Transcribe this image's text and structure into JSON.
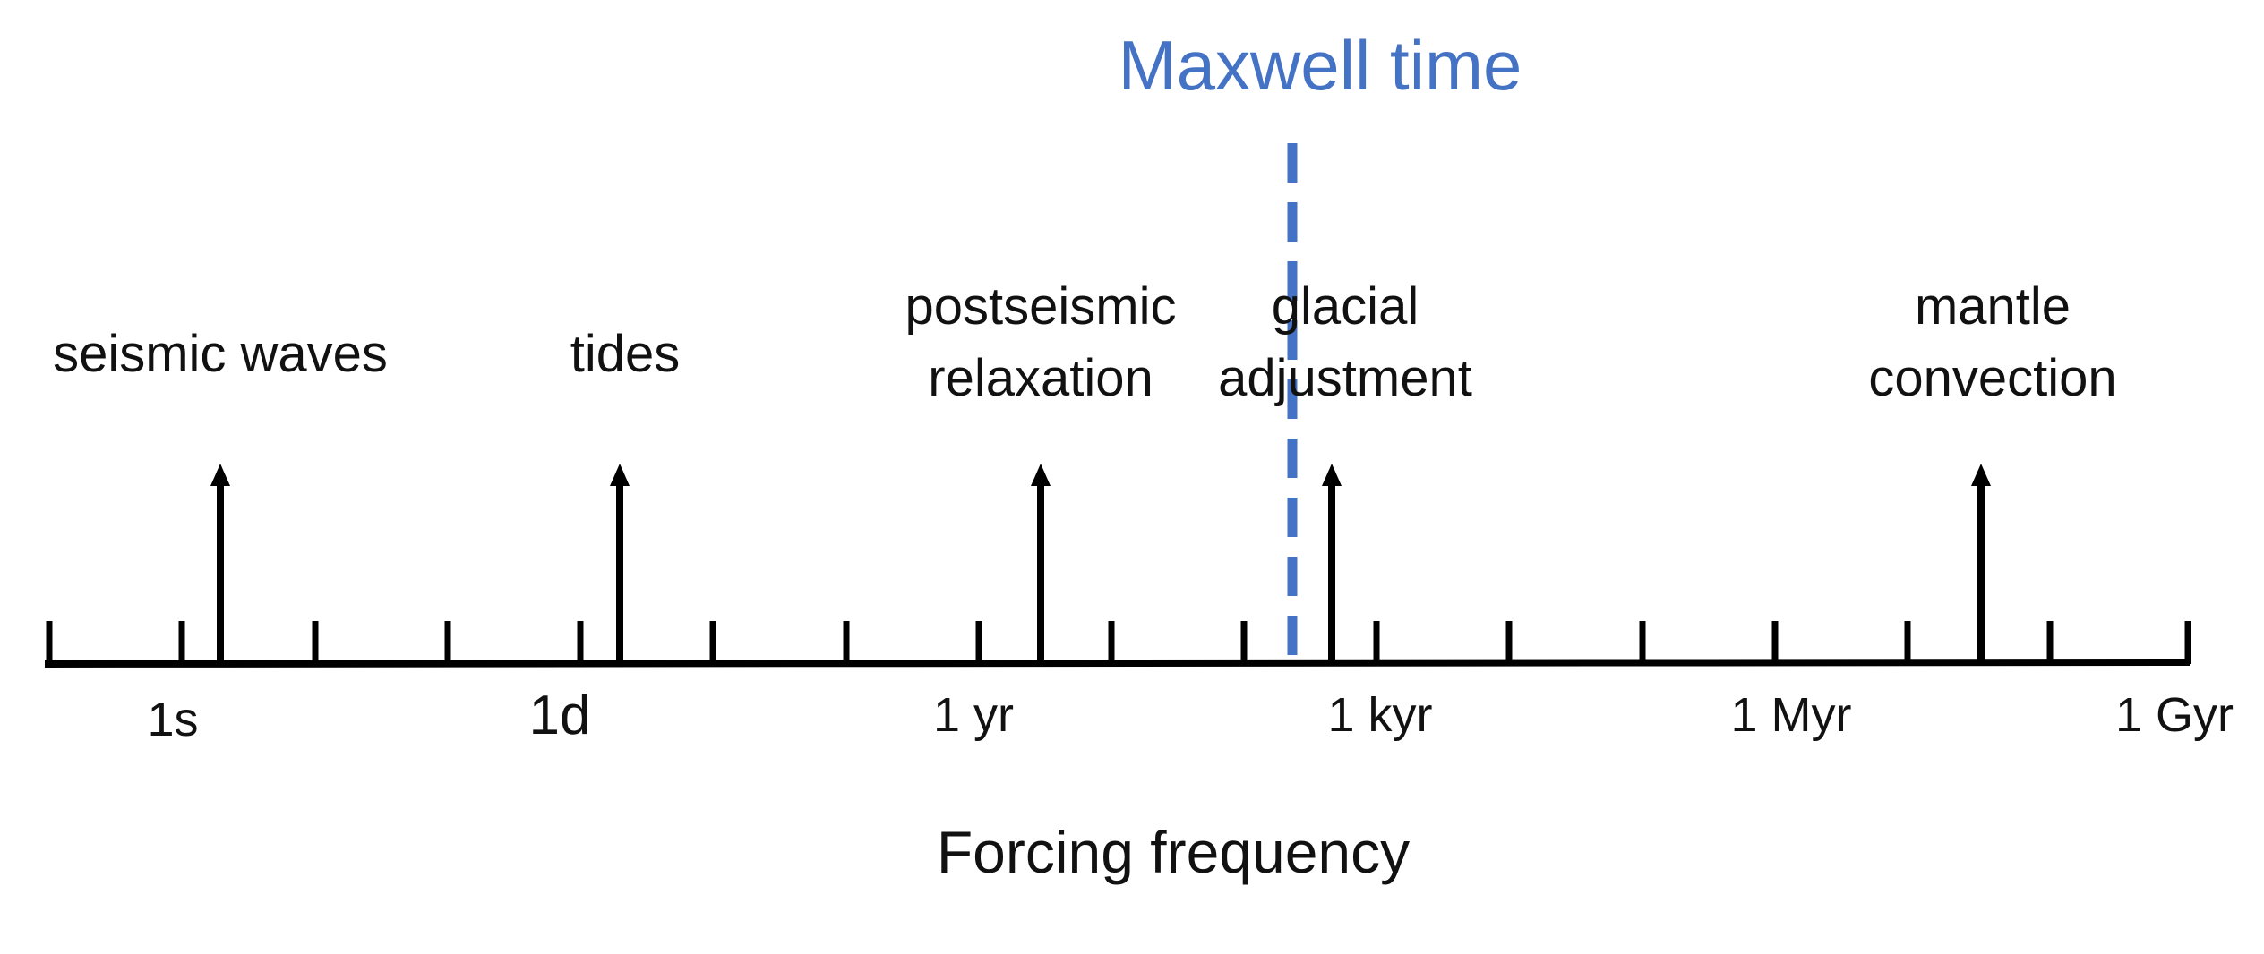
{
  "colors": {
    "axis": "#000000",
    "maxwell": "#4472C4",
    "text": "#111111"
  },
  "maxwell": {
    "label": "Maxwell time"
  },
  "axis": {
    "title": "Forcing frequency",
    "tick_labels": [
      "1s",
      "1d",
      "1 yr",
      "1 kyr",
      "1 Myr",
      "1 Gyr"
    ]
  },
  "processes": [
    {
      "lines": [
        "seismic waves"
      ]
    },
    {
      "lines": [
        "tides"
      ]
    },
    {
      "lines": [
        "postseismic",
        "relaxation"
      ]
    },
    {
      "lines": [
        "glacial",
        "adjustment"
      ]
    },
    {
      "lines": [
        "mantle",
        "convection"
      ]
    }
  ]
}
